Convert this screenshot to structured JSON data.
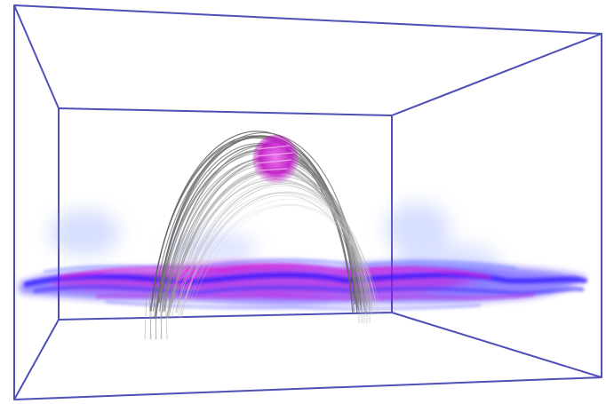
{
  "scene": {
    "background_color": "#ffffff",
    "box_edge_color": "#4f4fb8",
    "field_line_color": "#9a9a9a",
    "plasma_colors": [
      "#3a1cff",
      "#d21ad8",
      "#5b7cff"
    ],
    "blob_color": "#d01bd0"
  }
}
